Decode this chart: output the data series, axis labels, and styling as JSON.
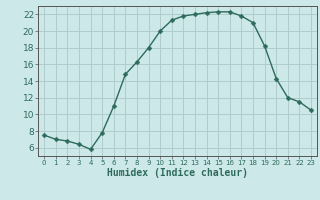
{
  "x": [
    0,
    1,
    2,
    3,
    4,
    5,
    6,
    7,
    8,
    9,
    10,
    11,
    12,
    13,
    14,
    15,
    16,
    17,
    18,
    19,
    20,
    21,
    22,
    23
  ],
  "y": [
    7.5,
    7.0,
    6.8,
    6.4,
    5.8,
    7.8,
    11.0,
    14.8,
    16.3,
    18.0,
    20.0,
    21.3,
    21.8,
    22.0,
    22.2,
    22.3,
    22.3,
    21.8,
    21.0,
    18.2,
    14.3,
    12.0,
    11.5,
    10.5
  ],
  "line_color": "#2e6b5e",
  "marker": "D",
  "marker_size": 2.5,
  "bg_color": "#cce8e8",
  "grid_color": "#b0cccc",
  "xlabel": "Humidex (Indice chaleur)",
  "xlim": [
    -0.5,
    23.5
  ],
  "ylim": [
    5.0,
    23.0
  ],
  "xticks": [
    0,
    1,
    2,
    3,
    4,
    5,
    6,
    7,
    8,
    9,
    10,
    11,
    12,
    13,
    14,
    15,
    16,
    17,
    18,
    19,
    20,
    21,
    22,
    23
  ],
  "yticks": [
    6,
    8,
    10,
    12,
    14,
    16,
    18,
    20,
    22
  ],
  "xlabel_fontsize": 7,
  "tick_fontsize": 6.5
}
